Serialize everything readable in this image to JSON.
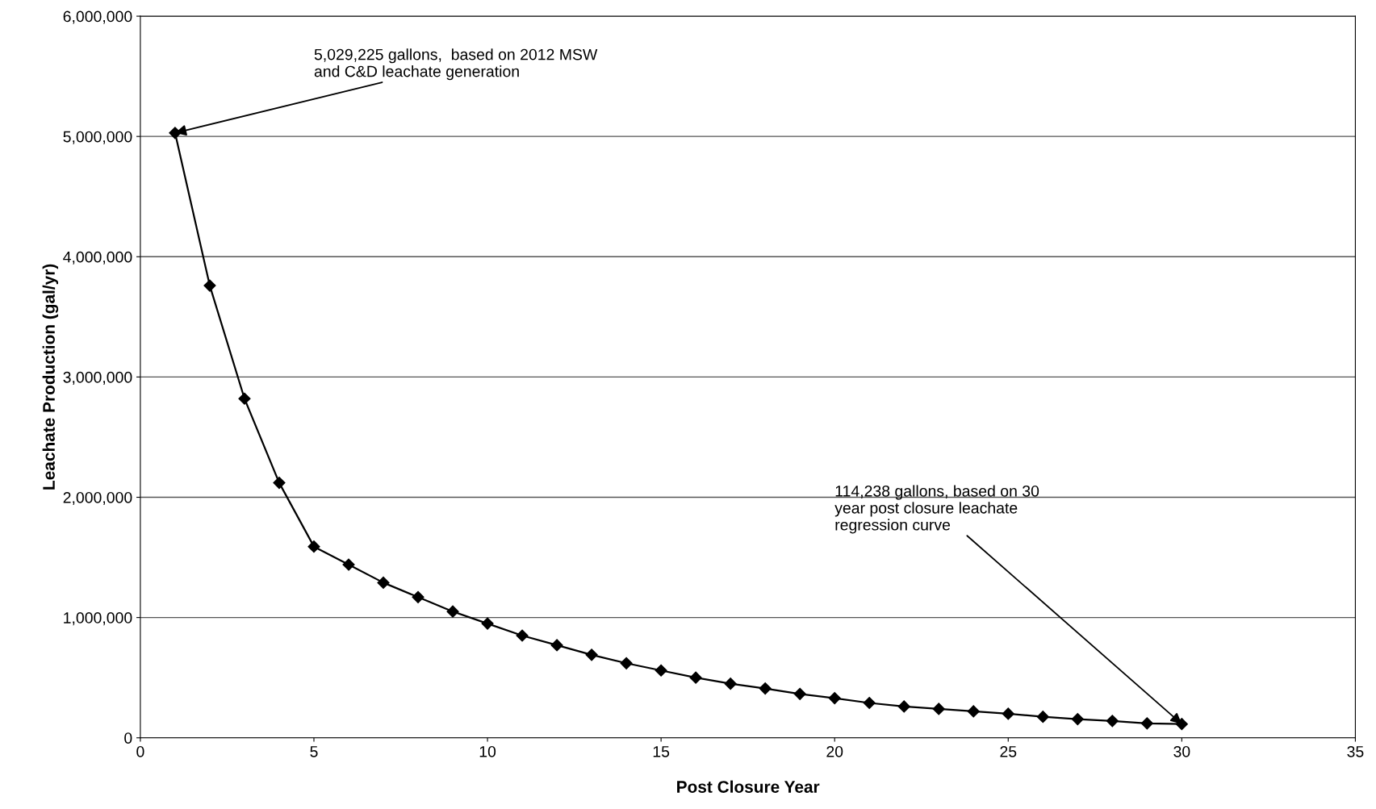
{
  "chart_data": {
    "type": "line",
    "xlabel": "Post Closure Year",
    "ylabel": "Leachate Production (gal/yr)",
    "x": [
      1,
      2,
      3,
      4,
      5,
      6,
      7,
      8,
      9,
      10,
      11,
      12,
      13,
      14,
      15,
      16,
      17,
      18,
      19,
      20,
      21,
      22,
      23,
      24,
      25,
      26,
      27,
      28,
      29,
      30
    ],
    "series": [
      {
        "color": "#000000",
        "values": [
          5029225,
          3760000,
          2820000,
          2120000,
          1590000,
          1440000,
          1290000,
          1170000,
          1050000,
          950000,
          850000,
          770000,
          690000,
          620000,
          560000,
          500000,
          450000,
          410000,
          365000,
          330000,
          290000,
          260000,
          240000,
          220000,
          200000,
          175000,
          155000,
          140000,
          120000,
          114238
        ]
      }
    ],
    "xlim": [
      0,
      35
    ],
    "xticks": [
      0,
      5,
      10,
      15,
      20,
      25,
      30,
      35
    ],
    "ylim": [
      0,
      6000000
    ],
    "yticks": [
      {
        "value": 0,
        "label": "0"
      },
      {
        "value": 1000000,
        "label": "1,000,000"
      },
      {
        "value": 2000000,
        "label": "2,000,000"
      },
      {
        "value": 3000000,
        "label": "3,000,000"
      },
      {
        "value": 4000000,
        "label": "4,000,000"
      },
      {
        "value": 5000000,
        "label": "5,000,000"
      },
      {
        "value": 6000000,
        "label": "6,000,000"
      }
    ],
    "grid": "y",
    "marker": "diamond",
    "line_style": "solid",
    "annotations": [
      {
        "text": "5,029,225 gallons,  based on 2012 MSW\nand C&D leachate generation",
        "x": 1,
        "y": 5029225
      },
      {
        "text": "114,238 gallons, based on 30\nyear post closure leachate\nregression curve",
        "x": 30,
        "y": 114238
      }
    ]
  }
}
